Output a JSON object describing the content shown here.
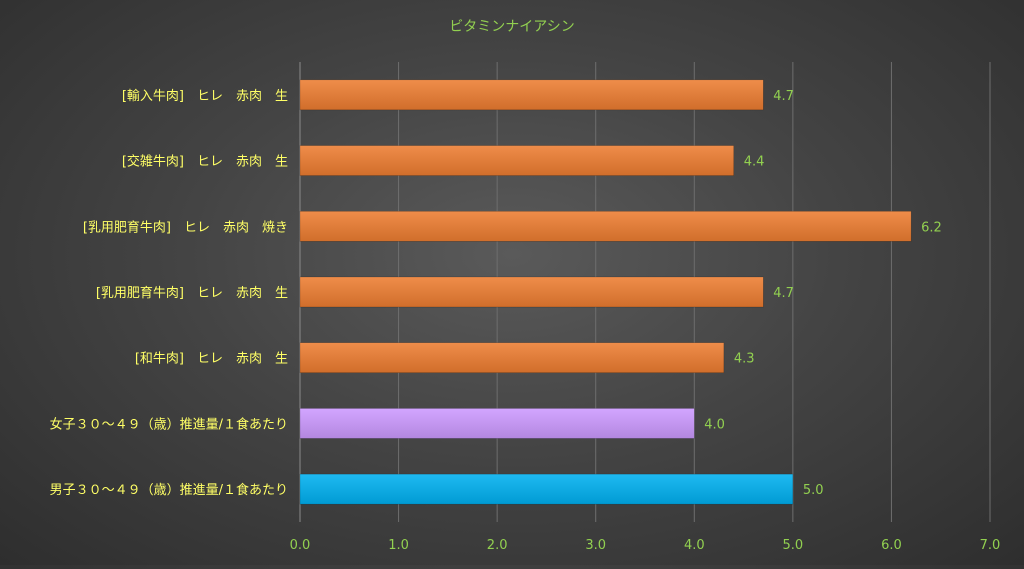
{
  "chart_data": {
    "type": "bar",
    "orientation": "horizontal",
    "title": "ビタミンナイアシン",
    "categories": [
      "[輸入牛肉]　ヒレ　赤肉　生",
      "[交雑牛肉]　ヒレ　赤肉　生",
      "[乳用肥育牛肉]　ヒレ　赤肉　焼き",
      "[乳用肥育牛肉]　ヒレ　赤肉　生",
      "[和牛肉]　ヒレ　赤肉　生",
      "女子３０～４９（歳）推進量/１食あたり",
      "男子３０～４９（歳）推進量/１食あたり"
    ],
    "values": [
      4.7,
      4.4,
      6.2,
      4.7,
      4.3,
      4.0,
      5.0
    ],
    "value_labels": [
      "4.7",
      "4.4",
      "6.2",
      "4.7",
      "4.3",
      "4.0",
      "5.0"
    ],
    "bar_colors": [
      "#ed7d31",
      "#ed7d31",
      "#ed7d31",
      "#ed7d31",
      "#ed7d31",
      "#cc99ff",
      "#00b0f0"
    ],
    "xlim": [
      0,
      7
    ],
    "xticks": [
      "0.0",
      "1.0",
      "2.0",
      "3.0",
      "4.0",
      "5.0",
      "6.0",
      "7.0"
    ],
    "grid": true,
    "legend": "none",
    "colors": {
      "title": "#92d050",
      "category_label": "#ffff66",
      "value_label": "#92d050",
      "tick_label": "#92d050",
      "grid": "#6e6e6e",
      "axis": "#8a8a8a"
    }
  }
}
